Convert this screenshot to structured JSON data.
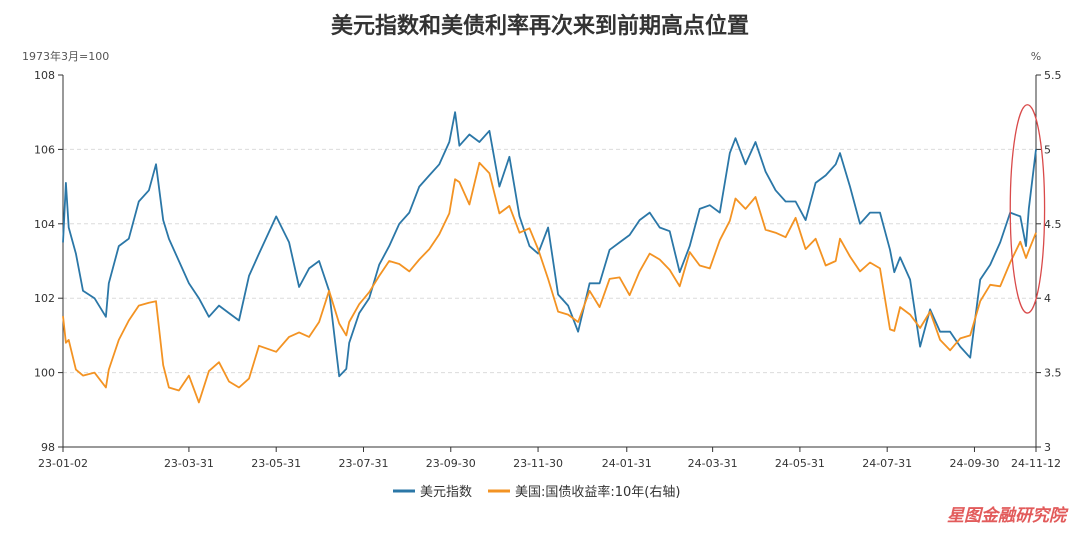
{
  "chart_data": {
    "type": "line",
    "title": "美元指数和美债利率再次来到前期高点位置",
    "left_unit": "1973年3月=100",
    "right_unit": "%",
    "left_ylim": [
      98,
      108
    ],
    "right_ylim": [
      3,
      5.5
    ],
    "left_ticks": [
      "108",
      "106",
      "104",
      "102",
      "100",
      "98"
    ],
    "right_ticks": [
      "5.5",
      "5",
      "4.5",
      "4",
      "3.5",
      "3"
    ],
    "x_ticks": [
      "23-01-02",
      "23-03-31",
      "23-05-31",
      "23-07-31",
      "23-09-30",
      "23-11-30",
      "24-01-31",
      "24-03-31",
      "24-05-31",
      "24-07-31",
      "24-09-30",
      "24-11-12"
    ],
    "x_tick_dates": [
      "2023-01-02",
      "2023-03-31",
      "2023-05-31",
      "2023-07-31",
      "2023-09-30",
      "2023-11-30",
      "2024-01-31",
      "2024-03-31",
      "2024-05-31",
      "2024-07-31",
      "2024-09-30",
      "2024-11-12"
    ],
    "grid": true,
    "legend_position": "bottom",
    "series": [
      {
        "name": "美元指数",
        "axis": "left",
        "color": "#2b77a7",
        "points": [
          [
            "2023-01-02",
            103.5
          ],
          [
            "2023-01-04",
            105.1
          ],
          [
            "2023-01-06",
            103.9
          ],
          [
            "2023-01-11",
            103.2
          ],
          [
            "2023-01-16",
            102.2
          ],
          [
            "2023-01-24",
            102.0
          ],
          [
            "2023-02-01",
            101.5
          ],
          [
            "2023-02-03",
            102.4
          ],
          [
            "2023-02-10",
            103.4
          ],
          [
            "2023-02-17",
            103.6
          ],
          [
            "2023-02-24",
            104.6
          ],
          [
            "2023-03-03",
            104.9
          ],
          [
            "2023-03-08",
            105.6
          ],
          [
            "2023-03-13",
            104.1
          ],
          [
            "2023-03-17",
            103.6
          ],
          [
            "2023-03-24",
            103.0
          ],
          [
            "2023-03-31",
            102.4
          ],
          [
            "2023-04-07",
            102.0
          ],
          [
            "2023-04-14",
            101.5
          ],
          [
            "2023-04-21",
            101.8
          ],
          [
            "2023-04-28",
            101.6
          ],
          [
            "2023-05-05",
            101.4
          ],
          [
            "2023-05-12",
            102.6
          ],
          [
            "2023-05-19",
            103.2
          ],
          [
            "2023-05-31",
            104.2
          ],
          [
            "2023-06-09",
            103.5
          ],
          [
            "2023-06-16",
            102.3
          ],
          [
            "2023-06-23",
            102.8
          ],
          [
            "2023-06-30",
            103.0
          ],
          [
            "2023-07-07",
            102.2
          ],
          [
            "2023-07-14",
            99.9
          ],
          [
            "2023-07-19",
            100.1
          ],
          [
            "2023-07-21",
            100.8
          ],
          [
            "2023-07-28",
            101.6
          ],
          [
            "2023-08-04",
            102.0
          ],
          [
            "2023-08-11",
            102.9
          ],
          [
            "2023-08-18",
            103.4
          ],
          [
            "2023-08-25",
            104.0
          ],
          [
            "2023-09-01",
            104.3
          ],
          [
            "2023-09-08",
            105.0
          ],
          [
            "2023-09-15",
            105.3
          ],
          [
            "2023-09-22",
            105.6
          ],
          [
            "2023-09-29",
            106.2
          ],
          [
            "2023-10-03",
            107.0
          ],
          [
            "2023-10-06",
            106.1
          ],
          [
            "2023-10-13",
            106.4
          ],
          [
            "2023-10-20",
            106.2
          ],
          [
            "2023-10-27",
            106.5
          ],
          [
            "2023-11-03",
            105.0
          ],
          [
            "2023-11-10",
            105.8
          ],
          [
            "2023-11-17",
            104.2
          ],
          [
            "2023-11-24",
            103.4
          ],
          [
            "2023-11-30",
            103.2
          ],
          [
            "2023-12-07",
            103.9
          ],
          [
            "2023-12-14",
            102.1
          ],
          [
            "2023-12-21",
            101.8
          ],
          [
            "2023-12-28",
            101.1
          ],
          [
            "2024-01-05",
            102.4
          ],
          [
            "2024-01-12",
            102.4
          ],
          [
            "2024-01-19",
            103.3
          ],
          [
            "2024-01-26",
            103.5
          ],
          [
            "2024-02-02",
            103.7
          ],
          [
            "2024-02-09",
            104.1
          ],
          [
            "2024-02-16",
            104.3
          ],
          [
            "2024-02-23",
            103.9
          ],
          [
            "2024-03-01",
            103.8
          ],
          [
            "2024-03-08",
            102.7
          ],
          [
            "2024-03-15",
            103.4
          ],
          [
            "2024-03-22",
            104.4
          ],
          [
            "2024-03-29",
            104.5
          ],
          [
            "2024-04-05",
            104.3
          ],
          [
            "2024-04-12",
            105.9
          ],
          [
            "2024-04-16",
            106.3
          ],
          [
            "2024-04-23",
            105.6
          ],
          [
            "2024-04-30",
            106.2
          ],
          [
            "2024-05-07",
            105.4
          ],
          [
            "2024-05-14",
            104.9
          ],
          [
            "2024-05-21",
            104.6
          ],
          [
            "2024-05-28",
            104.6
          ],
          [
            "2024-06-04",
            104.1
          ],
          [
            "2024-06-11",
            105.1
          ],
          [
            "2024-06-18",
            105.3
          ],
          [
            "2024-06-25",
            105.6
          ],
          [
            "2024-06-28",
            105.9
          ],
          [
            "2024-07-05",
            105.0
          ],
          [
            "2024-07-12",
            104.0
          ],
          [
            "2024-07-19",
            104.3
          ],
          [
            "2024-07-26",
            104.3
          ],
          [
            "2024-08-02",
            103.3
          ],
          [
            "2024-08-05",
            102.7
          ],
          [
            "2024-08-09",
            103.1
          ],
          [
            "2024-08-16",
            102.5
          ],
          [
            "2024-08-23",
            100.7
          ],
          [
            "2024-08-30",
            101.7
          ],
          [
            "2024-09-06",
            101.1
          ],
          [
            "2024-09-13",
            101.1
          ],
          [
            "2024-09-20",
            100.7
          ],
          [
            "2024-09-27",
            100.4
          ],
          [
            "2024-10-04",
            102.5
          ],
          [
            "2024-10-11",
            102.9
          ],
          [
            "2024-10-18",
            103.5
          ],
          [
            "2024-10-25",
            104.3
          ],
          [
            "2024-11-01",
            104.2
          ],
          [
            "2024-11-05",
            103.4
          ],
          [
            "2024-11-07",
            104.4
          ],
          [
            "2024-11-12",
            106.0
          ]
        ]
      },
      {
        "name": "美国:国债收益率:10年(右轴)",
        "axis": "right",
        "color": "#f39323",
        "points": [
          [
            "2023-01-02",
            3.88
          ],
          [
            "2023-01-04",
            3.7
          ],
          [
            "2023-01-06",
            3.72
          ],
          [
            "2023-01-11",
            3.52
          ],
          [
            "2023-01-16",
            3.48
          ],
          [
            "2023-01-24",
            3.5
          ],
          [
            "2023-02-01",
            3.4
          ],
          [
            "2023-02-03",
            3.52
          ],
          [
            "2023-02-10",
            3.72
          ],
          [
            "2023-02-17",
            3.85
          ],
          [
            "2023-02-24",
            3.95
          ],
          [
            "2023-03-03",
            3.97
          ],
          [
            "2023-03-08",
            3.98
          ],
          [
            "2023-03-13",
            3.55
          ],
          [
            "2023-03-17",
            3.4
          ],
          [
            "2023-03-24",
            3.38
          ],
          [
            "2023-03-31",
            3.48
          ],
          [
            "2023-04-07",
            3.3
          ],
          [
            "2023-04-14",
            3.51
          ],
          [
            "2023-04-21",
            3.57
          ],
          [
            "2023-04-28",
            3.44
          ],
          [
            "2023-05-05",
            3.4
          ],
          [
            "2023-05-12",
            3.46
          ],
          [
            "2023-05-19",
            3.68
          ],
          [
            "2023-05-31",
            3.64
          ],
          [
            "2023-06-09",
            3.74
          ],
          [
            "2023-06-16",
            3.77
          ],
          [
            "2023-06-23",
            3.74
          ],
          [
            "2023-06-30",
            3.84
          ],
          [
            "2023-07-07",
            4.05
          ],
          [
            "2023-07-14",
            3.83
          ],
          [
            "2023-07-19",
            3.75
          ],
          [
            "2023-07-21",
            3.84
          ],
          [
            "2023-07-28",
            3.96
          ],
          [
            "2023-08-04",
            4.04
          ],
          [
            "2023-08-11",
            4.15
          ],
          [
            "2023-08-18",
            4.25
          ],
          [
            "2023-08-25",
            4.23
          ],
          [
            "2023-09-01",
            4.18
          ],
          [
            "2023-09-08",
            4.26
          ],
          [
            "2023-09-15",
            4.33
          ],
          [
            "2023-09-22",
            4.43
          ],
          [
            "2023-09-29",
            4.57
          ],
          [
            "2023-10-03",
            4.8
          ],
          [
            "2023-10-06",
            4.78
          ],
          [
            "2023-10-13",
            4.63
          ],
          [
            "2023-10-20",
            4.91
          ],
          [
            "2023-10-27",
            4.84
          ],
          [
            "2023-11-03",
            4.57
          ],
          [
            "2023-11-10",
            4.62
          ],
          [
            "2023-11-17",
            4.44
          ],
          [
            "2023-11-24",
            4.47
          ],
          [
            "2023-11-30",
            4.33
          ],
          [
            "2023-12-07",
            4.13
          ],
          [
            "2023-12-14",
            3.91
          ],
          [
            "2023-12-21",
            3.89
          ],
          [
            "2023-12-28",
            3.84
          ],
          [
            "2024-01-05",
            4.05
          ],
          [
            "2024-01-12",
            3.94
          ],
          [
            "2024-01-19",
            4.13
          ],
          [
            "2024-01-26",
            4.14
          ],
          [
            "2024-02-02",
            4.02
          ],
          [
            "2024-02-09",
            4.18
          ],
          [
            "2024-02-16",
            4.3
          ],
          [
            "2024-02-23",
            4.26
          ],
          [
            "2024-03-01",
            4.19
          ],
          [
            "2024-03-08",
            4.08
          ],
          [
            "2024-03-15",
            4.31
          ],
          [
            "2024-03-22",
            4.22
          ],
          [
            "2024-03-29",
            4.2
          ],
          [
            "2024-04-05",
            4.39
          ],
          [
            "2024-04-12",
            4.52
          ],
          [
            "2024-04-16",
            4.67
          ],
          [
            "2024-04-23",
            4.6
          ],
          [
            "2024-04-30",
            4.68
          ],
          [
            "2024-05-07",
            4.46
          ],
          [
            "2024-05-14",
            4.44
          ],
          [
            "2024-05-21",
            4.41
          ],
          [
            "2024-05-28",
            4.54
          ],
          [
            "2024-06-04",
            4.33
          ],
          [
            "2024-06-11",
            4.4
          ],
          [
            "2024-06-18",
            4.22
          ],
          [
            "2024-06-25",
            4.25
          ],
          [
            "2024-06-28",
            4.4
          ],
          [
            "2024-07-05",
            4.28
          ],
          [
            "2024-07-12",
            4.18
          ],
          [
            "2024-07-19",
            4.24
          ],
          [
            "2024-07-26",
            4.2
          ],
          [
            "2024-08-02",
            3.79
          ],
          [
            "2024-08-05",
            3.78
          ],
          [
            "2024-08-09",
            3.94
          ],
          [
            "2024-08-16",
            3.89
          ],
          [
            "2024-08-23",
            3.8
          ],
          [
            "2024-08-30",
            3.91
          ],
          [
            "2024-09-06",
            3.72
          ],
          [
            "2024-09-13",
            3.65
          ],
          [
            "2024-09-20",
            3.73
          ],
          [
            "2024-09-27",
            3.75
          ],
          [
            "2024-10-04",
            3.98
          ],
          [
            "2024-10-11",
            4.09
          ],
          [
            "2024-10-18",
            4.08
          ],
          [
            "2024-10-25",
            4.24
          ],
          [
            "2024-11-01",
            4.38
          ],
          [
            "2024-11-05",
            4.27
          ],
          [
            "2024-11-07",
            4.32
          ],
          [
            "2024-11-12",
            4.44
          ]
        ]
      }
    ],
    "annotation": {
      "shape": "ellipse",
      "color": "#d94a4a",
      "x_range": [
        "2024-10-25",
        "2024-11-18"
      ],
      "left_y_range": [
        101.6,
        107.2
      ]
    }
  },
  "watermark": "星图金融研究院"
}
